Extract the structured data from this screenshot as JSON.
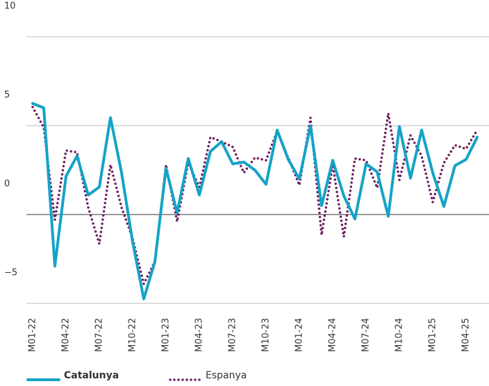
{
  "chart_data": {
    "type": "line",
    "categories": [
      "M01-22",
      null,
      null,
      "M04-22",
      null,
      null,
      "M07-22",
      null,
      null,
      "M10-22",
      null,
      null,
      "M01-23",
      null,
      null,
      "M04-23",
      null,
      null,
      "M07-23",
      null,
      null,
      "M10-23",
      null,
      null,
      "M01-24",
      null,
      null,
      "M04-24",
      null,
      null,
      "M07-24",
      null,
      null,
      "M10-24",
      null,
      null,
      "M01-25",
      null,
      null,
      "M04-25",
      null
    ],
    "series": [
      {
        "name": "Catalunya",
        "color": "#14a3c7",
        "values": [
          6.25,
          6.0,
          -2.9,
          2.15,
          3.3,
          1.1,
          1.55,
          5.45,
          2.35,
          -1.55,
          -4.75,
          -2.65,
          2.6,
          0.1,
          3.15,
          1.1,
          3.55,
          4.1,
          2.85,
          2.95,
          2.5,
          1.7,
          4.75,
          3.1,
          2.0,
          5.0,
          0.5,
          3.05,
          1.05,
          -0.25,
          2.85,
          2.4,
          -0.1,
          4.95,
          2.05,
          4.75,
          2.35,
          0.45,
          2.75,
          3.1,
          4.35
        ]
      },
      {
        "name": "Espanya",
        "color": "#6e1f5f",
        "values": [
          6.05,
          4.9,
          -0.3,
          3.6,
          3.5,
          0.4,
          -1.65,
          2.8,
          0.4,
          -1.35,
          -3.9,
          -2.65,
          2.8,
          -0.4,
          2.9,
          1.55,
          4.35,
          4.1,
          3.8,
          2.35,
          3.2,
          3.05,
          4.7,
          3.2,
          1.65,
          5.45,
          -1.15,
          2.8,
          -1.25,
          3.15,
          3.05,
          1.5,
          5.7,
          1.95,
          4.45,
          3.3,
          0.7,
          2.9,
          3.9,
          3.7,
          4.75
        ]
      }
    ],
    "ylim": [
      -5,
      10
    ],
    "yticks": [
      {
        "value": -5,
        "label": "−5"
      },
      0,
      5,
      10
    ],
    "grid": true
  }
}
